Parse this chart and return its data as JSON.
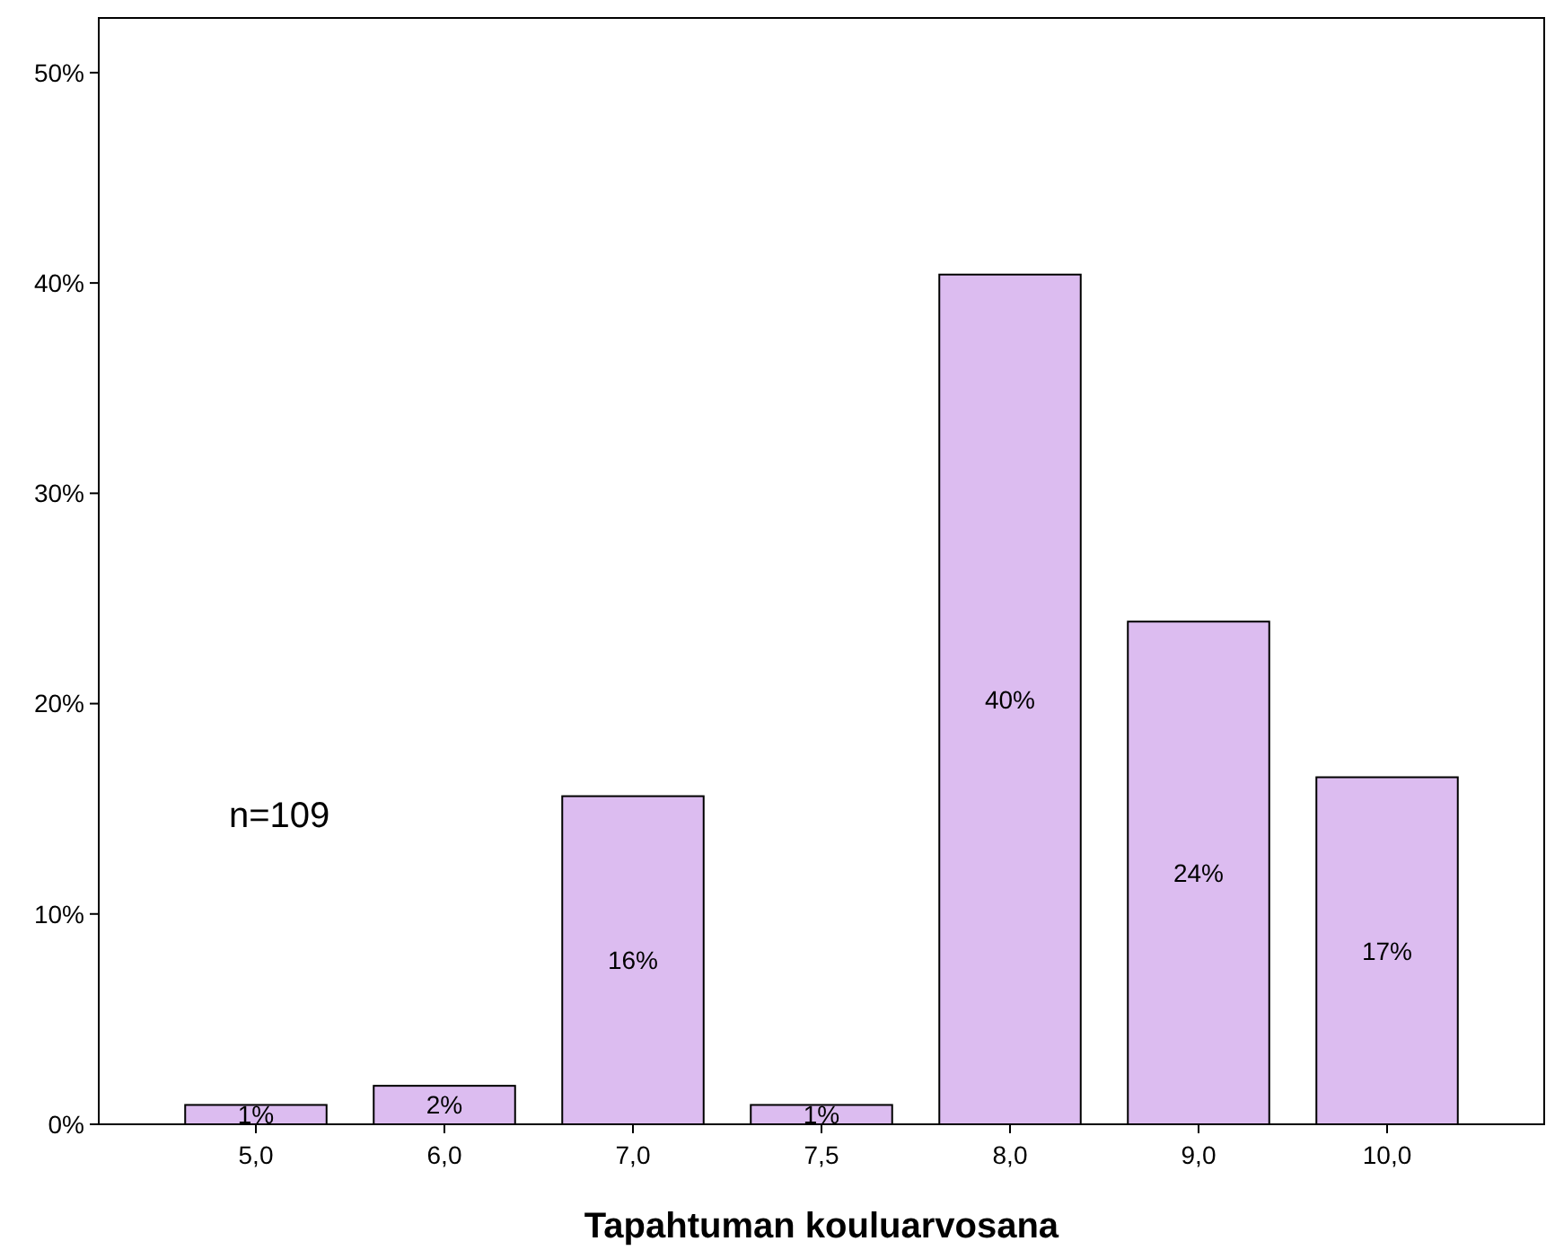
{
  "chart_data": {
    "type": "bar",
    "xlabel": "Tapahtuman kouluarvosana",
    "categories": [
      "5,0",
      "6,0",
      "7,0",
      "7,5",
      "8,0",
      "9,0",
      "10,0"
    ],
    "values": [
      0.92,
      1.83,
      15.6,
      0.92,
      40.4,
      23.9,
      16.5
    ],
    "value_labels": [
      "1%",
      "2%",
      "16%",
      "1%",
      "40%",
      "24%",
      "17%"
    ],
    "color": "#dcbcf0",
    "ylim": [
      0,
      52.6
    ],
    "yticks": [
      {
        "value": 0,
        "label": "0%"
      },
      {
        "value": 10,
        "label": "10%"
      },
      {
        "value": 20,
        "label": "20%"
      },
      {
        "value": 30,
        "label": "30%"
      },
      {
        "value": 40,
        "label": "40%"
      },
      {
        "value": 50,
        "label": "50%"
      }
    ],
    "annotations": [
      "n=109"
    ],
    "grid": false
  }
}
